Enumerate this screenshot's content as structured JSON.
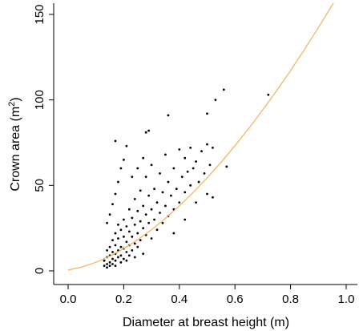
{
  "chart_data": {
    "type": "scatter",
    "title": "",
    "xlabel": "Diameter at breast height (m)",
    "ylabel_main": "Crown area (m",
    "ylabel_sup": "2",
    "ylabel_close": ")",
    "xlim": [
      0.0,
      1.0
    ],
    "ylim": [
      0,
      150
    ],
    "x_ticks": [
      0.0,
      0.2,
      0.4,
      0.6,
      0.8,
      1.0
    ],
    "x_tick_labels": [
      "0.0",
      "0.2",
      "0.4",
      "0.6",
      "0.8",
      "1.0"
    ],
    "y_ticks": [
      0,
      50,
      100,
      150
    ],
    "y_tick_labels": [
      "0",
      "50",
      "100",
      "150"
    ],
    "grid": false,
    "legend": "none",
    "series": [
      {
        "type": "scatter",
        "color": "#000000",
        "points": [
          [
            0.13,
            3
          ],
          [
            0.13,
            6
          ],
          [
            0.14,
            2
          ],
          [
            0.14,
            8
          ],
          [
            0.14,
            12
          ],
          [
            0.14,
            4
          ],
          [
            0.15,
            5
          ],
          [
            0.15,
            9
          ],
          [
            0.15,
            14
          ],
          [
            0.15,
            3
          ],
          [
            0.16,
            7
          ],
          [
            0.16,
            11
          ],
          [
            0.16,
            18
          ],
          [
            0.16,
            4
          ],
          [
            0.17,
            6
          ],
          [
            0.17,
            10
          ],
          [
            0.17,
            15
          ],
          [
            0.17,
            22
          ],
          [
            0.17,
            3
          ],
          [
            0.18,
            8
          ],
          [
            0.18,
            12
          ],
          [
            0.18,
            19
          ],
          [
            0.18,
            27
          ],
          [
            0.19,
            5
          ],
          [
            0.19,
            9
          ],
          [
            0.19,
            14
          ],
          [
            0.19,
            24
          ],
          [
            0.2,
            7
          ],
          [
            0.2,
            13
          ],
          [
            0.2,
            20
          ],
          [
            0.2,
            30
          ],
          [
            0.21,
            6
          ],
          [
            0.21,
            11
          ],
          [
            0.21,
            17
          ],
          [
            0.21,
            26
          ],
          [
            0.22,
            9
          ],
          [
            0.22,
            15
          ],
          [
            0.22,
            23
          ],
          [
            0.22,
            36
          ],
          [
            0.23,
            12
          ],
          [
            0.23,
            20
          ],
          [
            0.23,
            31
          ],
          [
            0.24,
            8
          ],
          [
            0.24,
            16
          ],
          [
            0.24,
            27
          ],
          [
            0.24,
            42
          ],
          [
            0.25,
            14
          ],
          [
            0.25,
            22
          ],
          [
            0.25,
            35
          ],
          [
            0.26,
            18
          ],
          [
            0.26,
            29
          ],
          [
            0.26,
            47
          ],
          [
            0.27,
            10
          ],
          [
            0.27,
            25
          ],
          [
            0.27,
            38
          ],
          [
            0.28,
            21
          ],
          [
            0.28,
            33
          ],
          [
            0.28,
            55
          ],
          [
            0.29,
            28
          ],
          [
            0.29,
            44
          ],
          [
            0.3,
            19
          ],
          [
            0.3,
            36
          ],
          [
            0.3,
            62
          ],
          [
            0.31,
            30
          ],
          [
            0.31,
            48
          ],
          [
            0.32,
            24
          ],
          [
            0.32,
            40
          ],
          [
            0.33,
            34
          ],
          [
            0.33,
            57
          ],
          [
            0.34,
            28
          ],
          [
            0.34,
            46
          ],
          [
            0.35,
            38
          ],
          [
            0.35,
            68
          ],
          [
            0.36,
            32
          ],
          [
            0.36,
            52
          ],
          [
            0.37,
            44
          ],
          [
            0.38,
            36
          ],
          [
            0.38,
            60
          ],
          [
            0.39,
            48
          ],
          [
            0.4,
            40
          ],
          [
            0.4,
            71
          ],
          [
            0.41,
            55
          ],
          [
            0.42,
            46
          ],
          [
            0.42,
            66
          ],
          [
            0.43,
            58
          ],
          [
            0.44,
            50
          ],
          [
            0.44,
            72
          ],
          [
            0.45,
            60
          ],
          [
            0.46,
            40
          ],
          [
            0.46,
            64
          ],
          [
            0.47,
            52
          ],
          [
            0.48,
            70
          ],
          [
            0.49,
            57
          ],
          [
            0.5,
            45
          ],
          [
            0.5,
            74
          ],
          [
            0.51,
            62
          ],
          [
            0.52,
            43
          ],
          [
            0.53,
            100
          ],
          [
            0.56,
            106
          ],
          [
            0.57,
            61
          ],
          [
            0.72,
            103
          ],
          [
            0.14,
            28
          ],
          [
            0.15,
            33
          ],
          [
            0.16,
            39
          ],
          [
            0.17,
            45
          ],
          [
            0.18,
            52
          ],
          [
            0.19,
            60
          ],
          [
            0.2,
            65
          ],
          [
            0.17,
            76
          ],
          [
            0.21,
            73
          ],
          [
            0.23,
            55
          ],
          [
            0.25,
            60
          ],
          [
            0.27,
            66
          ],
          [
            0.28,
            81
          ],
          [
            0.29,
            82
          ],
          [
            0.36,
            91
          ],
          [
            0.5,
            92
          ],
          [
            0.52,
            72
          ],
          [
            0.38,
            22
          ],
          [
            0.42,
            30
          ]
        ]
      },
      {
        "type": "line",
        "name": "",
        "color": "#F2B766",
        "points": [
          [
            0.0,
            0.5
          ],
          [
            0.05,
            2.3
          ],
          [
            0.1,
            5.0
          ],
          [
            0.15,
            8.6
          ],
          [
            0.2,
            13.0
          ],
          [
            0.25,
            18.2
          ],
          [
            0.3,
            24.1
          ],
          [
            0.35,
            30.7
          ],
          [
            0.4,
            38.0
          ],
          [
            0.45,
            45.9
          ],
          [
            0.5,
            54.4
          ],
          [
            0.55,
            63.5
          ],
          [
            0.6,
            73.2
          ],
          [
            0.65,
            83.4
          ],
          [
            0.7,
            94.2
          ],
          [
            0.75,
            105.4
          ],
          [
            0.8,
            117.2
          ],
          [
            0.85,
            129.5
          ],
          [
            0.9,
            142.3
          ],
          [
            0.95,
            155.5
          ],
          [
            1.0,
            169.3
          ]
        ]
      }
    ]
  }
}
